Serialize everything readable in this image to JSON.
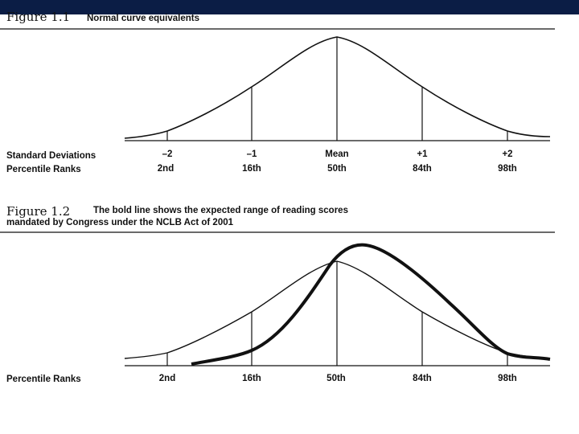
{
  "figure1": {
    "number": "Figure 1.1",
    "caption": "Normal curve equivalents",
    "rows": [
      {
        "label": "Standard Deviations",
        "ticks": [
          "–2",
          "–1",
          "Mean",
          "+1",
          "+2"
        ]
      },
      {
        "label": "Percentile Ranks",
        "ticks": [
          "2nd",
          "16th",
          "50th",
          "84th",
          "98th"
        ]
      }
    ]
  },
  "figure2": {
    "number": "Figure 1.2",
    "caption_line1": "The bold line shows the expected range of reading scores",
    "caption_line2": "mandated by Congress under the NCLB Act of 2001",
    "rows": [
      {
        "label": "Percentile Ranks",
        "ticks": [
          "2nd",
          "16th",
          "50th",
          "84th",
          "98th"
        ]
      }
    ]
  },
  "colors": {
    "ink": "#111111",
    "header_bar": "#0b1d45"
  }
}
